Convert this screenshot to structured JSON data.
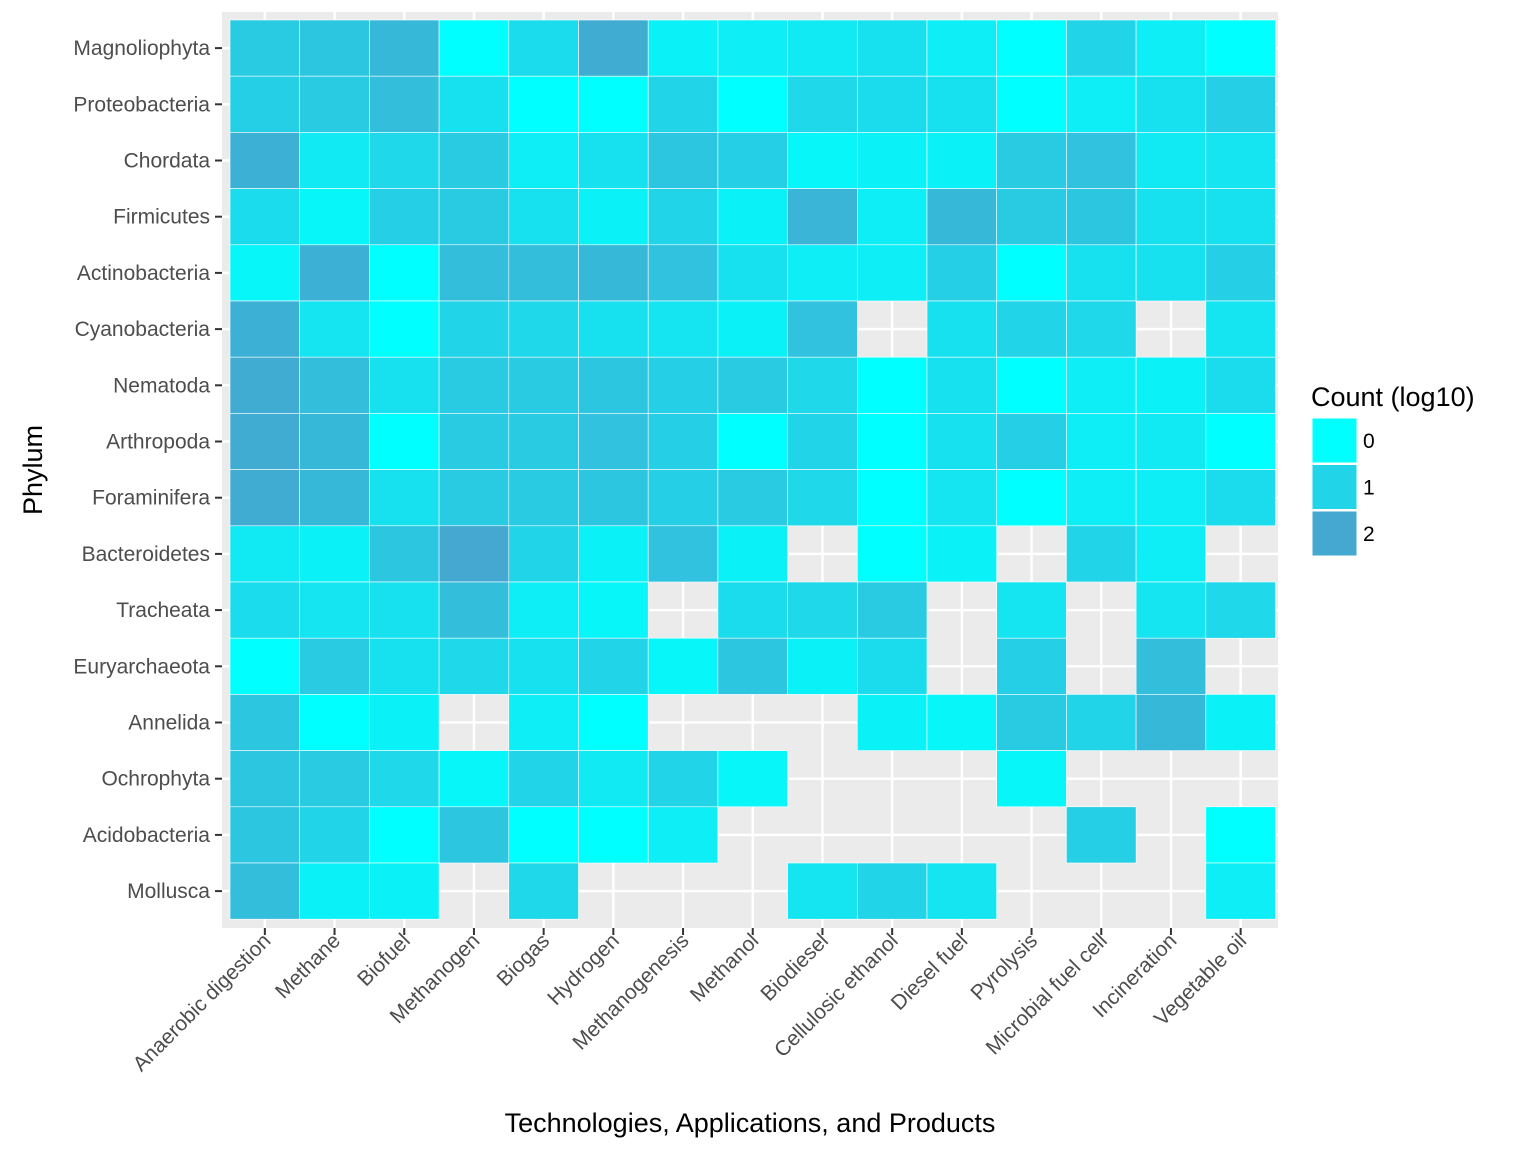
{
  "chart_data": {
    "type": "heatmap",
    "xlabel": "Technologies, Applications, and Products",
    "ylabel": "Phylum",
    "x_categories": [
      "Anaerobic digestion",
      "Methane",
      "Biofuel",
      "Methanogen",
      "Biogas",
      "Hydrogen",
      "Methanogenesis",
      "Methanol",
      "Biodiesel",
      "Cellulosic ethanol",
      "Diesel fuel",
      "Pyrolysis",
      "Microbial fuel cell",
      "Incineration",
      "Vegetable oil"
    ],
    "y_categories": [
      "Magnoliophyta",
      "Proteobacteria",
      "Chordata",
      "Firmicutes",
      "Actinobacteria",
      "Cyanobacteria",
      "Nematoda",
      "Arthropoda",
      "Foraminifera",
      "Bacteroidetes",
      "Tracheata",
      "Euryarchaeota",
      "Annelida",
      "Ochrophyta",
      "Acidobacteria",
      "Mollusca"
    ],
    "values": [
      [
        1.2,
        1.3,
        1.6,
        0.0,
        0.8,
        1.9,
        0.3,
        0.4,
        0.5,
        0.7,
        0.4,
        0.0,
        1.0,
        0.4,
        0.0
      ],
      [
        1.1,
        1.2,
        1.5,
        0.7,
        0.0,
        0.0,
        1.0,
        0.0,
        0.9,
        0.8,
        0.7,
        0.0,
        0.4,
        0.7,
        1.1
      ],
      [
        1.8,
        0.5,
        0.9,
        1.2,
        0.4,
        0.7,
        1.3,
        1.1,
        0.2,
        0.3,
        0.3,
        1.2,
        1.4,
        0.5,
        0.6
      ],
      [
        0.8,
        0.2,
        1.1,
        1.2,
        0.7,
        0.3,
        1.0,
        0.3,
        1.7,
        0.4,
        1.6,
        1.2,
        1.3,
        0.7,
        0.7
      ],
      [
        0.2,
        1.8,
        0.0,
        1.5,
        1.5,
        1.6,
        1.4,
        0.7,
        0.4,
        0.4,
        1.1,
        0.0,
        0.7,
        0.7,
        1.1
      ],
      [
        1.8,
        0.6,
        0.0,
        1.0,
        0.9,
        0.7,
        0.6,
        0.3,
        1.4,
        null,
        0.7,
        1.0,
        0.9,
        null,
        0.6
      ],
      [
        1.9,
        1.5,
        0.7,
        1.2,
        1.2,
        1.3,
        1.1,
        1.2,
        0.9,
        0.0,
        0.7,
        0.0,
        0.4,
        0.3,
        0.8
      ],
      [
        1.9,
        1.6,
        0.0,
        1.2,
        1.2,
        1.4,
        1.1,
        0.0,
        1.0,
        0.0,
        0.7,
        1.1,
        0.4,
        0.5,
        0.0
      ],
      [
        1.9,
        1.6,
        0.7,
        1.2,
        1.2,
        1.3,
        1.1,
        1.2,
        0.9,
        0.0,
        0.6,
        0.0,
        0.4,
        0.4,
        0.8
      ],
      [
        0.5,
        0.3,
        1.3,
        2.0,
        1.0,
        0.3,
        1.4,
        0.3,
        null,
        0.0,
        0.3,
        null,
        1.0,
        0.4,
        null
      ],
      [
        0.8,
        0.6,
        0.7,
        1.5,
        0.4,
        0.2,
        null,
        0.8,
        0.9,
        1.2,
        null,
        0.6,
        null,
        0.6,
        0.9
      ],
      [
        0.0,
        1.2,
        0.7,
        0.9,
        0.7,
        1.0,
        0.2,
        1.3,
        0.3,
        0.8,
        null,
        1.1,
        null,
        1.5,
        null
      ],
      [
        1.3,
        0.0,
        0.3,
        null,
        0.4,
        0.0,
        null,
        null,
        null,
        0.3,
        0.2,
        1.2,
        1.0,
        1.6,
        0.3
      ],
      [
        1.3,
        1.2,
        0.9,
        0.2,
        1.0,
        0.5,
        1.0,
        0.2,
        null,
        null,
        null,
        0.2,
        null,
        null,
        null
      ],
      [
        1.3,
        1.0,
        0.0,
        1.3,
        0.0,
        0.0,
        0.4,
        null,
        null,
        null,
        null,
        null,
        1.1,
        null,
        0.0
      ],
      [
        1.5,
        0.3,
        0.3,
        null,
        0.9,
        null,
        null,
        null,
        0.6,
        1.0,
        0.6,
        null,
        null,
        null,
        0.4
      ]
    ],
    "color_scale": {
      "low": "#00ffff",
      "high": "#44a8d0",
      "domain": [
        0,
        2
      ]
    },
    "panel_background": "#ebebeb",
    "grid": true,
    "legend": {
      "title": "Count (log10)",
      "placement": "right",
      "entries": [
        {
          "label": "0",
          "value": 0
        },
        {
          "label": "1",
          "value": 1
        },
        {
          "label": "2",
          "value": 2
        }
      ]
    }
  }
}
